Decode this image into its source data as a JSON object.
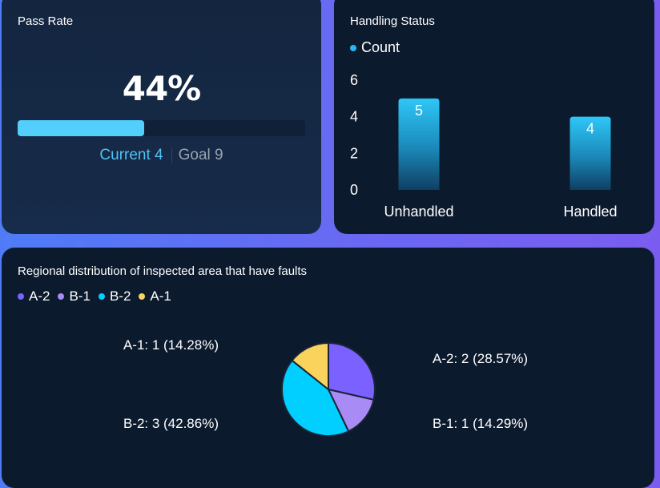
{
  "pass_rate": {
    "title": "Pass Rate",
    "percent_label": "44%",
    "progress": 0.44,
    "current_label": "Current 4",
    "goal_label": "Goal 9",
    "colors": {
      "fill": "#52d0fb",
      "current": "#4fc3f7",
      "goal": "#9aa4b2"
    }
  },
  "handling_status": {
    "title": "Handling Status",
    "legend": [
      {
        "label": "Count",
        "color": "#29b6f6"
      }
    ]
  },
  "regional": {
    "title": "Regional distribution of inspected area that have faults",
    "legend": [
      {
        "label": "A-2",
        "color": "#7b61ff"
      },
      {
        "label": "B-1",
        "color": "#a98bf5"
      },
      {
        "label": "B-2",
        "color": "#00cfff"
      },
      {
        "label": "A-1",
        "color": "#f9d35b"
      }
    ]
  },
  "chart_data": [
    {
      "type": "bar",
      "title": "Handling Status",
      "categories": [
        "Unhandled",
        "Handled"
      ],
      "series": [
        {
          "name": "Count",
          "values": [
            5,
            4
          ]
        }
      ],
      "ylim": [
        0,
        6
      ],
      "yticks": [
        "0",
        "2",
        "4",
        "6"
      ],
      "data_labels": [
        "5",
        "4"
      ],
      "grid": false,
      "legend": "top-left"
    },
    {
      "type": "pie",
      "title": "Regional distribution of inspected area that have faults",
      "categories": [
        "A-2",
        "B-1",
        "B-2",
        "A-1"
      ],
      "values": [
        2,
        1,
        3,
        1
      ],
      "colors": [
        "#7b61ff",
        "#a98bf5",
        "#00cfff",
        "#f9d35b"
      ],
      "slice_labels": [
        "A-2: 2 (28.57%)",
        "B-1: 1 (14.29%)",
        "B-2: 3 (42.86%)",
        "A-1: 1 (14.28%)"
      ],
      "legend": "top-left"
    }
  ]
}
